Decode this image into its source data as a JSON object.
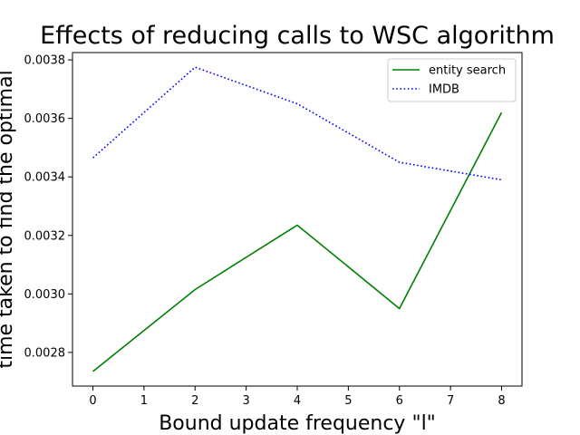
{
  "chart_data": {
    "type": "line",
    "title": "Effects of reducing calls to WSC algorithm",
    "xlabel": "Bound update frequency \"l\"",
    "ylabel": "time taken to find the optimal",
    "x": [
      0,
      2,
      4,
      6,
      8
    ],
    "xticks": [
      "0",
      "1",
      "2",
      "3",
      "4",
      "5",
      "6",
      "7",
      "8"
    ],
    "yticks": [
      "0.0028",
      "0.0030",
      "0.0032",
      "0.0034",
      "0.0036",
      "0.0038"
    ],
    "xlim": [
      -0.4,
      8.4
    ],
    "ylim": [
      0.002685,
      0.003825
    ],
    "legend_position": "upper right",
    "grid": false,
    "series": [
      {
        "name": "entity search",
        "color": "#008000",
        "style": "solid",
        "values": [
          0.002735,
          0.003015,
          0.003235,
          0.00295,
          0.00362
        ]
      },
      {
        "name": "IMDB",
        "color": "#0000ff",
        "style": "dotted",
        "values": [
          0.003465,
          0.003775,
          0.00365,
          0.00345,
          0.00339
        ]
      }
    ]
  }
}
